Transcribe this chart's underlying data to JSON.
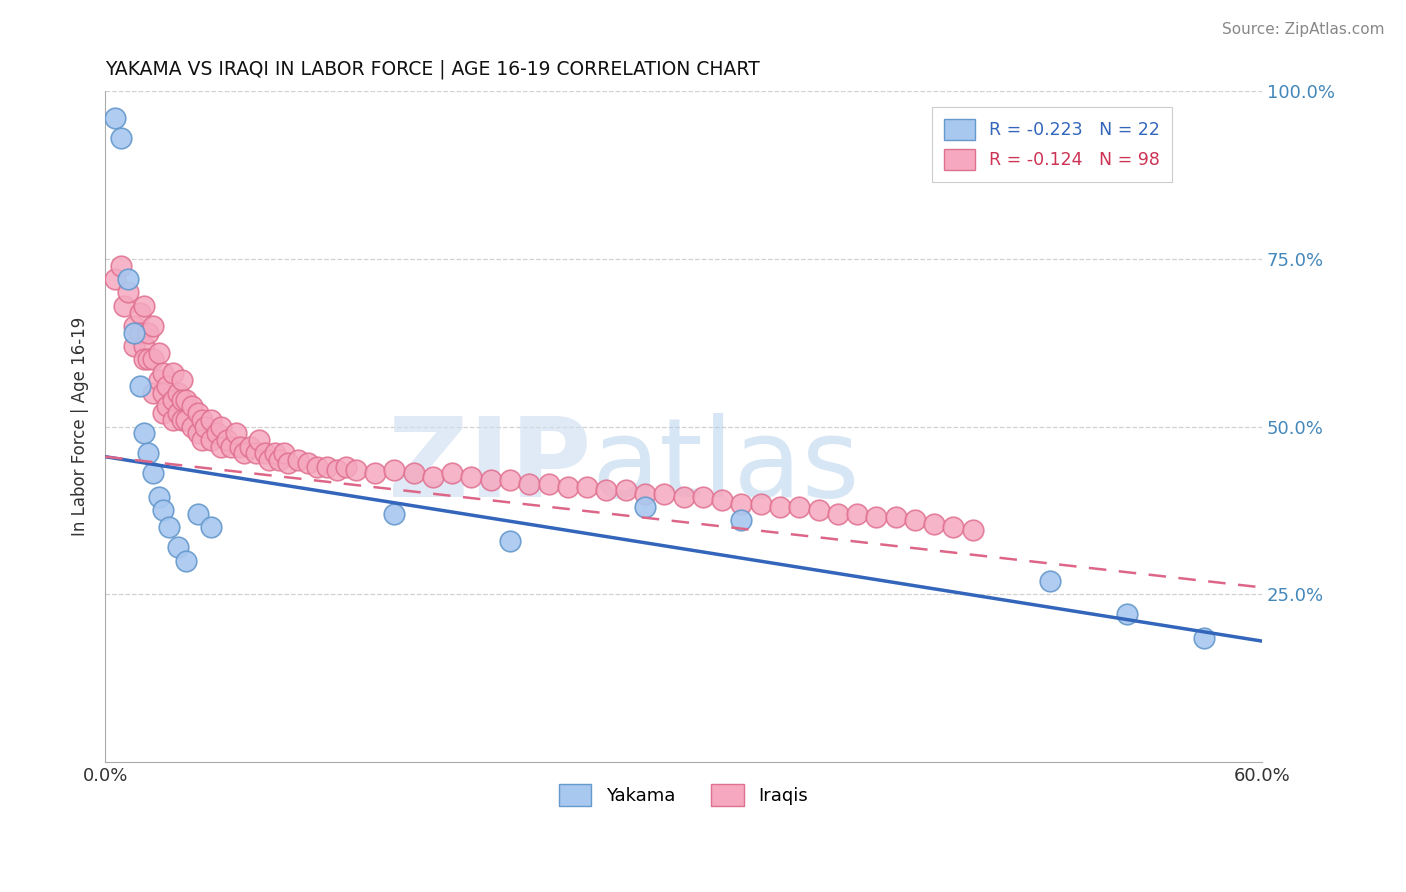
{
  "title": "YAKAMA VS IRAQI IN LABOR FORCE | AGE 16-19 CORRELATION CHART",
  "source_text": "Source: ZipAtlas.com",
  "ylabel_text": "In Labor Force | Age 16-19",
  "xlim": [
    0.0,
    0.6
  ],
  "ylim": [
    0.0,
    1.0
  ],
  "yakama_color": "#a8c8f0",
  "iraqi_color": "#f5a8c0",
  "yakama_edge": "#6699cc",
  "iraqi_edge": "#e07090",
  "R_yakama": -0.223,
  "N_yakama": 22,
  "R_iraqi": -0.124,
  "N_iraqi": 98,
  "legend_yakama_label": "R = -0.223   N = 22",
  "legend_iraqi_label": "R = -0.124   N = 98",
  "watermark_zip": "ZIP",
  "watermark_atlas": "atlas",
  "yakama_x": [
    0.005,
    0.008,
    0.012,
    0.015,
    0.018,
    0.02,
    0.022,
    0.025,
    0.028,
    0.03,
    0.033,
    0.038,
    0.042,
    0.048,
    0.055,
    0.15,
    0.21,
    0.28,
    0.33,
    0.49,
    0.53,
    0.57
  ],
  "yakama_y": [
    0.96,
    0.93,
    0.72,
    0.64,
    0.56,
    0.49,
    0.46,
    0.43,
    0.395,
    0.375,
    0.35,
    0.32,
    0.3,
    0.37,
    0.35,
    0.37,
    0.33,
    0.38,
    0.36,
    0.27,
    0.22,
    0.185
  ],
  "iraqi_x": [
    0.005,
    0.008,
    0.01,
    0.012,
    0.015,
    0.015,
    0.018,
    0.018,
    0.02,
    0.02,
    0.02,
    0.022,
    0.022,
    0.025,
    0.025,
    0.025,
    0.028,
    0.028,
    0.03,
    0.03,
    0.03,
    0.032,
    0.032,
    0.035,
    0.035,
    0.035,
    0.038,
    0.038,
    0.04,
    0.04,
    0.04,
    0.042,
    0.042,
    0.045,
    0.045,
    0.048,
    0.048,
    0.05,
    0.05,
    0.052,
    0.055,
    0.055,
    0.058,
    0.06,
    0.06,
    0.063,
    0.065,
    0.068,
    0.07,
    0.072,
    0.075,
    0.078,
    0.08,
    0.083,
    0.085,
    0.088,
    0.09,
    0.093,
    0.095,
    0.1,
    0.105,
    0.11,
    0.115,
    0.12,
    0.125,
    0.13,
    0.14,
    0.15,
    0.16,
    0.17,
    0.18,
    0.19,
    0.2,
    0.21,
    0.22,
    0.23,
    0.24,
    0.25,
    0.26,
    0.27,
    0.28,
    0.29,
    0.3,
    0.31,
    0.32,
    0.33,
    0.34,
    0.35,
    0.36,
    0.37,
    0.38,
    0.39,
    0.4,
    0.41,
    0.42,
    0.43,
    0.44,
    0.45
  ],
  "iraqi_y": [
    0.72,
    0.74,
    0.68,
    0.7,
    0.65,
    0.62,
    0.67,
    0.64,
    0.68,
    0.62,
    0.6,
    0.64,
    0.6,
    0.65,
    0.6,
    0.55,
    0.61,
    0.57,
    0.58,
    0.55,
    0.52,
    0.56,
    0.53,
    0.58,
    0.54,
    0.51,
    0.55,
    0.52,
    0.57,
    0.54,
    0.51,
    0.54,
    0.51,
    0.53,
    0.5,
    0.52,
    0.49,
    0.51,
    0.48,
    0.5,
    0.51,
    0.48,
    0.49,
    0.5,
    0.47,
    0.48,
    0.47,
    0.49,
    0.47,
    0.46,
    0.47,
    0.46,
    0.48,
    0.46,
    0.45,
    0.46,
    0.45,
    0.46,
    0.445,
    0.45,
    0.445,
    0.44,
    0.44,
    0.435,
    0.44,
    0.435,
    0.43,
    0.435,
    0.43,
    0.425,
    0.43,
    0.425,
    0.42,
    0.42,
    0.415,
    0.415,
    0.41,
    0.41,
    0.405,
    0.405,
    0.4,
    0.4,
    0.395,
    0.395,
    0.39,
    0.385,
    0.385,
    0.38,
    0.38,
    0.375,
    0.37,
    0.37,
    0.365,
    0.365,
    0.36,
    0.355,
    0.35,
    0.345
  ]
}
